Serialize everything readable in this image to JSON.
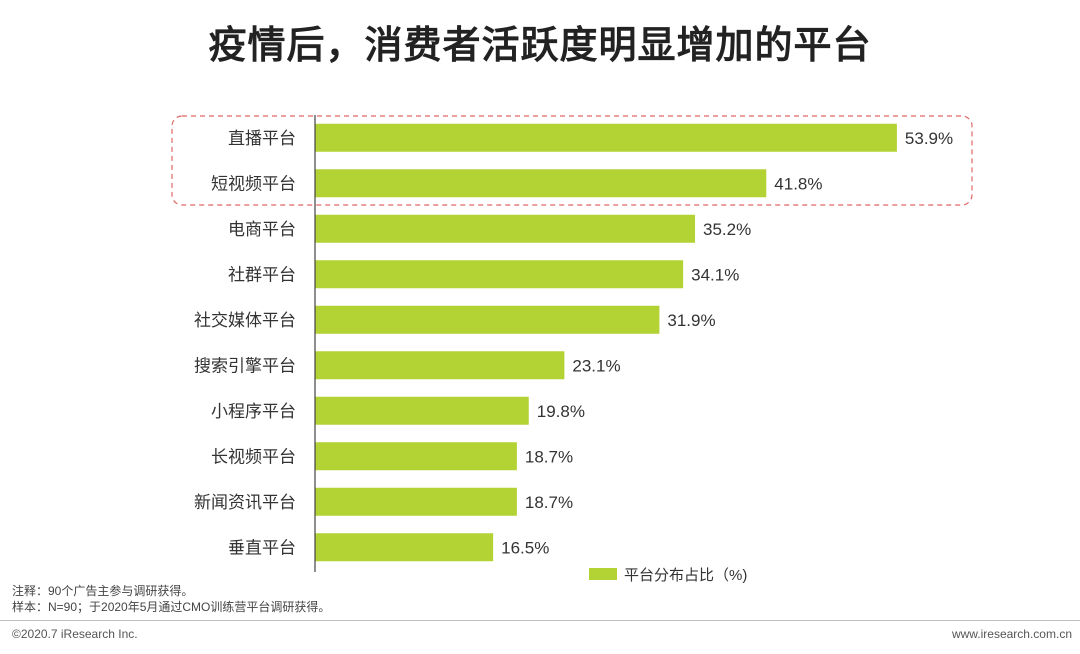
{
  "title": "疫情后，消费者活跃度明显增加的平台",
  "chart_data": {
    "type": "bar",
    "orientation": "horizontal",
    "categories": [
      "直播平台",
      "短视频平台",
      "电商平台",
      "社群平台",
      "社交媒体平台",
      "搜索引擎平台",
      "小程序平台",
      "长视频平台",
      "新闻资讯平台",
      "垂直平台"
    ],
    "series": [
      {
        "name": "平台分布占比（%)",
        "values": [
          53.9,
          41.8,
          35.2,
          34.1,
          31.9,
          23.1,
          19.8,
          18.7,
          18.7,
          16.5
        ],
        "labels": [
          "53.9%",
          "41.8%",
          "35.2%",
          "34.1%",
          "31.9%",
          "23.1%",
          "19.8%",
          "18.7%",
          "18.7%",
          "16.5%"
        ]
      }
    ],
    "highlighted_categories": [
      "直播平台",
      "短视频平台"
    ],
    "xlim": [
      0,
      54
    ],
    "grid": false,
    "legend_position": "bottom-right",
    "colors": {
      "bar": "#b3d334",
      "highlight_border": "#e06666",
      "axis": "#444444"
    }
  },
  "notes": {
    "line1": "注释：90个广告主参与调研获得。",
    "line2": "样本：N=90；于2020年5月通过CMO训练营平台调研获得。"
  },
  "footer": {
    "copyright": "©2020.7 iResearch Inc.",
    "website": "www.iresearch.com.cn"
  }
}
